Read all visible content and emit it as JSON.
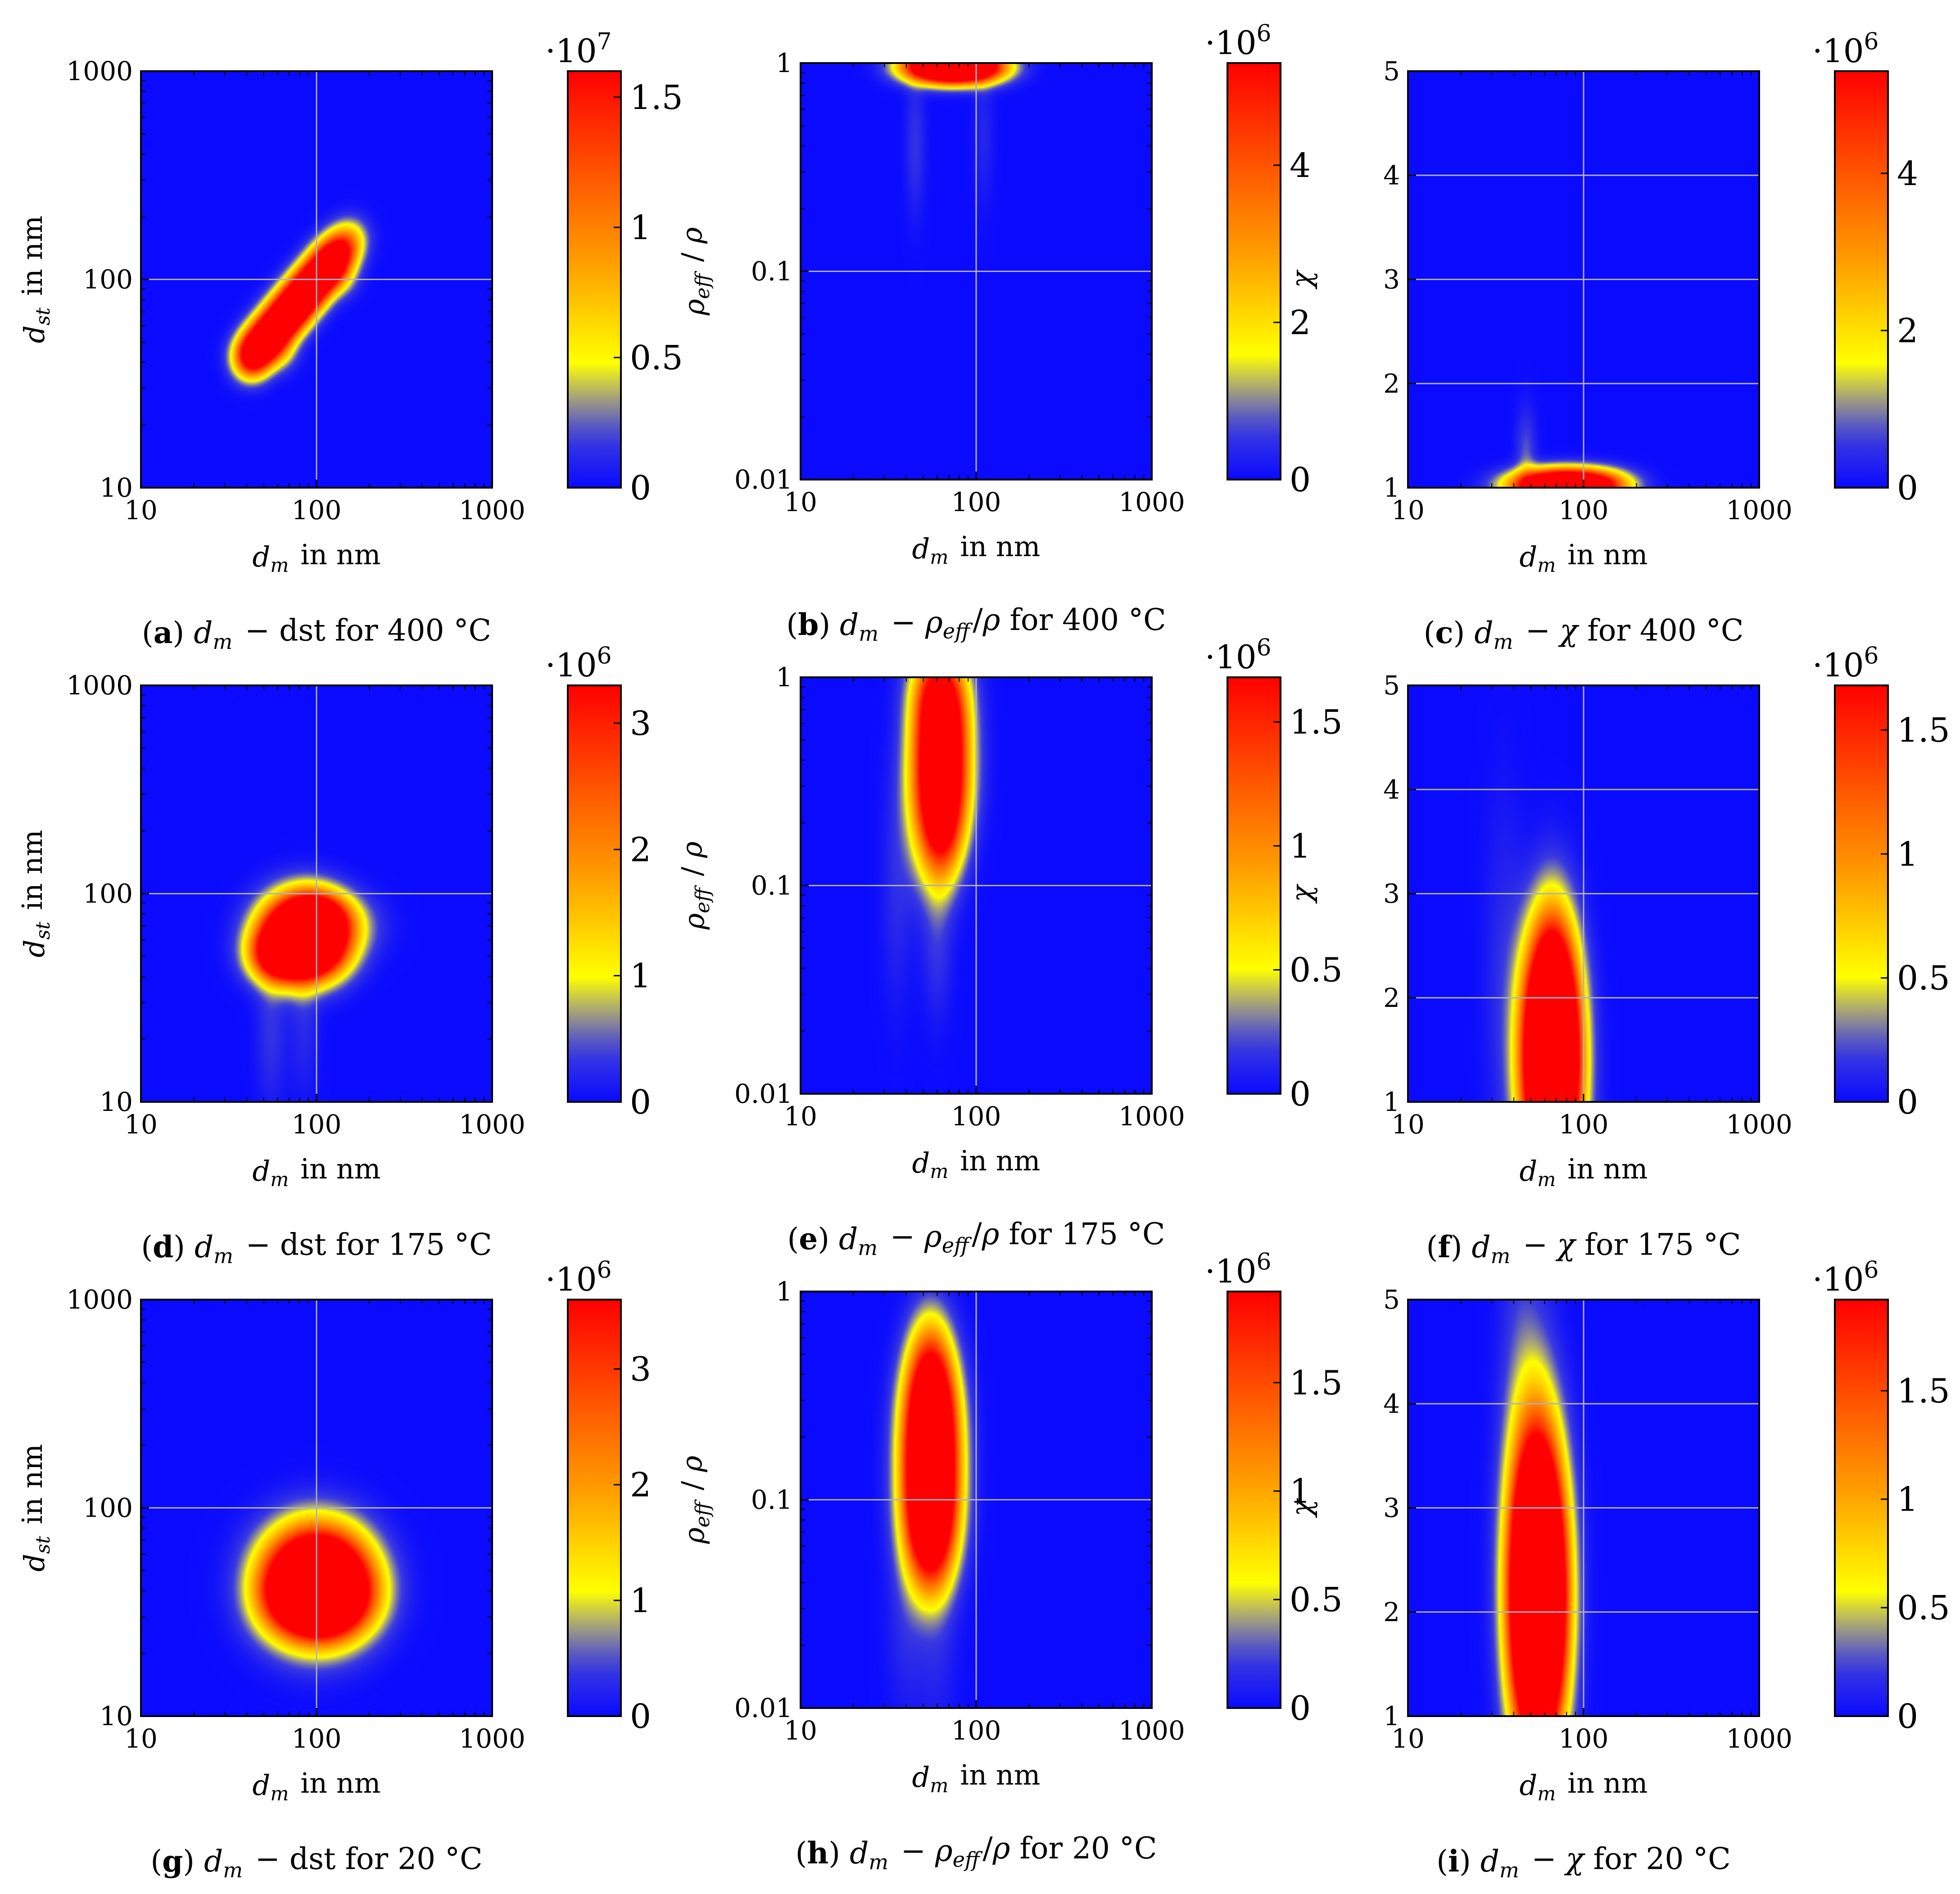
{
  "figure": {
    "colormap": {
      "name": "blue-yellow-red",
      "stops": [
        {
          "t": 0.0,
          "color": "#0a0aff"
        },
        {
          "t": 0.12,
          "color": "#3a3ae0"
        },
        {
          "t": 0.22,
          "color": "#a9a57a"
        },
        {
          "t": 0.3,
          "color": "#ffff00"
        },
        {
          "t": 0.55,
          "color": "#ff9a00"
        },
        {
          "t": 1.0,
          "color": "#ff0000"
        }
      ]
    },
    "grid_color": "#b0b0c0",
    "background_color": "#0a0aff"
  },
  "chart_data": [
    {
      "id": "a",
      "type": "heatmap",
      "caption": {
        "letter": "a",
        "text": "d_m − d_st for 400 °C"
      },
      "xlabel": "d_m in nm",
      "ylabel": "d_st in nm",
      "xscale": "log",
      "xlim": [
        10,
        1000
      ],
      "xticks": [
        10,
        100,
        1000
      ],
      "xticklabels": [
        "10",
        "100",
        "1000"
      ],
      "yscale": "log",
      "ylim": [
        10,
        1000
      ],
      "yticks": [
        10,
        100,
        1000
      ],
      "yticklabels": [
        "10",
        "100",
        "1000"
      ],
      "colorbar": {
        "exponent": "·10",
        "exp_power": "7",
        "max": 1.6,
        "ticks": [
          0,
          0.5,
          1,
          1.5
        ],
        "ticklabels": [
          "0",
          "0.5",
          "1",
          "1.5"
        ]
      },
      "blobs": [
        {
          "x": 42,
          "y": 42,
          "sx": 0.035,
          "sy": 0.035,
          "v": 0.95
        },
        {
          "x": 48,
          "y": 48,
          "sx": 0.035,
          "sy": 0.035,
          "v": 1.0
        },
        {
          "x": 55,
          "y": 55,
          "sx": 0.035,
          "sy": 0.035,
          "v": 1.0
        },
        {
          "x": 63,
          "y": 63,
          "sx": 0.035,
          "sy": 0.035,
          "v": 1.0
        },
        {
          "x": 72,
          "y": 72,
          "sx": 0.035,
          "sy": 0.035,
          "v": 1.0
        },
        {
          "x": 82,
          "y": 82,
          "sx": 0.035,
          "sy": 0.035,
          "v": 1.0
        },
        {
          "x": 94,
          "y": 94,
          "sx": 0.035,
          "sy": 0.035,
          "v": 1.0
        },
        {
          "x": 108,
          "y": 108,
          "sx": 0.035,
          "sy": 0.035,
          "v": 0.95
        },
        {
          "x": 123,
          "y": 123,
          "sx": 0.035,
          "sy": 0.035,
          "v": 0.9
        },
        {
          "x": 140,
          "y": 140,
          "sx": 0.035,
          "sy": 0.035,
          "v": 0.6
        },
        {
          "x": 160,
          "y": 160,
          "sx": 0.035,
          "sy": 0.035,
          "v": 0.25
        },
        {
          "x": 65,
          "y": 44,
          "sx": 0.03,
          "sy": 0.03,
          "v": 0.15
        },
        {
          "x": 145,
          "y": 100,
          "sx": 0.03,
          "sy": 0.03,
          "v": 0.12
        }
      ]
    },
    {
      "id": "b",
      "type": "heatmap",
      "caption": {
        "letter": "b",
        "text": "d_m − ρ_eff/ρ for 400 °C"
      },
      "xlabel": "d_m in nm",
      "ylabel": "ρ_eff / ρ",
      "xscale": "log",
      "xlim": [
        10,
        1000
      ],
      "xticks": [
        10,
        100,
        1000
      ],
      "xticklabels": [
        "10",
        "100",
        "1000"
      ],
      "yscale": "log",
      "ylim": [
        0.01,
        1
      ],
      "yticks": [
        0.01,
        0.1,
        1
      ],
      "yticklabels": [
        "0.01",
        "0.1",
        "1"
      ],
      "colorbar": {
        "exponent": "·10",
        "exp_power": "6",
        "max": 5.3,
        "ticks": [
          0,
          2,
          4
        ],
        "ticklabels": [
          "0",
          "2",
          "4"
        ]
      },
      "blobs": [
        {
          "x": 62,
          "y": 0.96,
          "sx": 0.07,
          "sy": 0.025,
          "v": 0.85
        },
        {
          "x": 75,
          "y": 0.96,
          "sx": 0.07,
          "sy": 0.025,
          "v": 0.95
        },
        {
          "x": 90,
          "y": 0.96,
          "sx": 0.07,
          "sy": 0.025,
          "v": 0.85
        },
        {
          "x": 50,
          "y": 0.96,
          "sx": 0.06,
          "sy": 0.025,
          "v": 0.35
        },
        {
          "x": 110,
          "y": 0.96,
          "sx": 0.06,
          "sy": 0.025,
          "v": 0.35
        },
        {
          "x": 45,
          "y": 0.4,
          "sx": 0.02,
          "sy": 0.12,
          "v": 0.1
        },
        {
          "x": 110,
          "y": 0.45,
          "sx": 0.02,
          "sy": 0.12,
          "v": 0.07
        }
      ]
    },
    {
      "id": "c",
      "type": "heatmap",
      "caption": {
        "letter": "c",
        "text": "d_m − χ for 400 °C"
      },
      "xlabel": "d_m in nm",
      "ylabel": "χ",
      "xscale": "log",
      "xlim": [
        10,
        1000
      ],
      "xticks": [
        10,
        100,
        1000
      ],
      "xticklabels": [
        "10",
        "100",
        "1000"
      ],
      "yscale": "linear",
      "ylim": [
        1,
        5
      ],
      "yticks": [
        1,
        2,
        3,
        4,
        5
      ],
      "yticklabels": [
        "1",
        "2",
        "3",
        "4",
        "5"
      ],
      "colorbar": {
        "exponent": "·10",
        "exp_power": "6",
        "max": 5.3,
        "ticks": [
          0,
          2,
          4
        ],
        "ticklabels": [
          "0",
          "2",
          "4"
        ]
      },
      "blobs": [
        {
          "x": 60,
          "y": 1.02,
          "sx": 0.08,
          "sy": 0.025,
          "v": 0.85
        },
        {
          "x": 78,
          "y": 1.02,
          "sx": 0.08,
          "sy": 0.025,
          "v": 0.95
        },
        {
          "x": 100,
          "y": 1.02,
          "sx": 0.08,
          "sy": 0.025,
          "v": 0.8
        },
        {
          "x": 130,
          "y": 1.02,
          "sx": 0.06,
          "sy": 0.025,
          "v": 0.3
        },
        {
          "x": 47,
          "y": 1.3,
          "sx": 0.02,
          "sy": 0.08,
          "v": 0.15
        }
      ]
    },
    {
      "id": "d",
      "type": "heatmap",
      "caption": {
        "letter": "d",
        "text": "d_m − d_st for 175 °C"
      },
      "xlabel": "d_m in nm",
      "ylabel": "d_st in nm",
      "xscale": "log",
      "xlim": [
        10,
        1000
      ],
      "xticks": [
        10,
        100,
        1000
      ],
      "xticklabels": [
        "10",
        "100",
        "1000"
      ],
      "yscale": "log",
      "ylim": [
        10,
        1000
      ],
      "yticks": [
        10,
        100,
        1000
      ],
      "yticklabels": [
        "10",
        "100",
        "1000"
      ],
      "colorbar": {
        "exponent": "·10",
        "exp_power": "6",
        "max": 3.3,
        "ticks": [
          0,
          1,
          2,
          3
        ],
        "ticklabels": [
          "0",
          "1",
          "2",
          "3"
        ]
      },
      "blobs": [
        {
          "x": 72,
          "y": 62,
          "sx": 0.07,
          "sy": 0.06,
          "v": 0.95
        },
        {
          "x": 88,
          "y": 68,
          "sx": 0.07,
          "sy": 0.06,
          "v": 1.0
        },
        {
          "x": 80,
          "y": 52,
          "sx": 0.07,
          "sy": 0.05,
          "v": 0.9
        },
        {
          "x": 102,
          "y": 77,
          "sx": 0.06,
          "sy": 0.04,
          "v": 0.8
        },
        {
          "x": 58,
          "y": 50,
          "sx": 0.05,
          "sy": 0.04,
          "v": 0.6
        },
        {
          "x": 110,
          "y": 55,
          "sx": 0.06,
          "sy": 0.05,
          "v": 0.55
        },
        {
          "x": 150,
          "y": 70,
          "sx": 0.07,
          "sy": 0.05,
          "v": 0.18
        },
        {
          "x": 55,
          "y": 22,
          "sx": 0.03,
          "sy": 0.13,
          "v": 0.1
        },
        {
          "x": 85,
          "y": 25,
          "sx": 0.03,
          "sy": 0.13,
          "v": 0.08
        }
      ]
    },
    {
      "id": "e",
      "type": "heatmap",
      "caption": {
        "letter": "e",
        "text": "d_m − ρ_eff/ρ for 175 °C"
      },
      "xlabel": "d_m in nm",
      "ylabel": "ρ_eff / ρ",
      "xscale": "log",
      "xlim": [
        10,
        1000
      ],
      "xticks": [
        10,
        100,
        1000
      ],
      "xticklabels": [
        "10",
        "100",
        "1000"
      ],
      "yscale": "log",
      "ylim": [
        0.01,
        1
      ],
      "yticks": [
        0.01,
        0.1,
        1
      ],
      "yticklabels": [
        "0.01",
        "0.1",
        "1"
      ],
      "colorbar": {
        "exponent": "·10",
        "exp_power": "6",
        "max": 1.68,
        "ticks": [
          0,
          0.5,
          1,
          1.5
        ],
        "ticklabels": [
          "0",
          "0.5",
          "1",
          "1.5"
        ]
      },
      "blobs": [
        {
          "x": 62,
          "y": 0.9,
          "sx": 0.05,
          "sy": 0.07,
          "v": 0.85
        },
        {
          "x": 63,
          "y": 0.6,
          "sx": 0.05,
          "sy": 0.07,
          "v": 0.95
        },
        {
          "x": 63,
          "y": 0.4,
          "sx": 0.05,
          "sy": 0.07,
          "v": 1.0
        },
        {
          "x": 63,
          "y": 0.27,
          "sx": 0.05,
          "sy": 0.07,
          "v": 0.95
        },
        {
          "x": 63,
          "y": 0.18,
          "sx": 0.045,
          "sy": 0.07,
          "v": 0.75
        },
        {
          "x": 62,
          "y": 0.12,
          "sx": 0.04,
          "sy": 0.08,
          "v": 0.25
        },
        {
          "x": 35,
          "y": 0.1,
          "sx": 0.03,
          "sy": 0.2,
          "v": 0.08
        },
        {
          "x": 45,
          "y": 0.2,
          "sx": 0.03,
          "sy": 0.15,
          "v": 0.08
        },
        {
          "x": 60,
          "y": 0.05,
          "sx": 0.03,
          "sy": 0.12,
          "v": 0.1
        }
      ]
    },
    {
      "id": "f",
      "type": "heatmap",
      "caption": {
        "letter": "f",
        "text": "d_m − χ for 175 °C"
      },
      "xlabel": "d_m in nm",
      "ylabel": "χ",
      "xscale": "log",
      "xlim": [
        10,
        1000
      ],
      "xticks": [
        10,
        100,
        1000
      ],
      "xticklabels": [
        "10",
        "100",
        "1000"
      ],
      "yscale": "linear",
      "ylim": [
        1,
        5
      ],
      "yticks": [
        1,
        2,
        3,
        4,
        5
      ],
      "yticklabels": [
        "1",
        "2",
        "3",
        "4",
        "5"
      ],
      "colorbar": {
        "exponent": "·10",
        "exp_power": "6",
        "max": 1.68,
        "ticks": [
          0,
          0.5,
          1,
          1.5
        ],
        "ticklabels": [
          "0",
          "0.5",
          "1",
          "1.5"
        ]
      },
      "blobs": [
        {
          "x": 66,
          "y": 1.15,
          "sx": 0.05,
          "sy": 0.18,
          "v": 1.0
        },
        {
          "x": 66,
          "y": 1.35,
          "sx": 0.05,
          "sy": 0.18,
          "v": 1.0
        },
        {
          "x": 66,
          "y": 1.55,
          "sx": 0.05,
          "sy": 0.18,
          "v": 0.9
        },
        {
          "x": 66,
          "y": 1.8,
          "sx": 0.045,
          "sy": 0.16,
          "v": 0.55
        },
        {
          "x": 66,
          "y": 2.05,
          "sx": 0.04,
          "sy": 0.15,
          "v": 0.25
        },
        {
          "x": 35,
          "y": 2.2,
          "sx": 0.04,
          "sy": 0.3,
          "v": 0.08
        },
        {
          "x": 45,
          "y": 1.6,
          "sx": 0.03,
          "sy": 0.2,
          "v": 0.07
        }
      ]
    },
    {
      "id": "g",
      "type": "heatmap",
      "caption": {
        "letter": "g",
        "text": "d_m − d_st for 20 °C"
      },
      "xlabel": "d_m in nm",
      "ylabel": "d_st in nm",
      "xscale": "log",
      "xlim": [
        10,
        1000
      ],
      "xticks": [
        10,
        100,
        1000
      ],
      "xticklabels": [
        "10",
        "100",
        "1000"
      ],
      "yscale": "log",
      "ylim": [
        10,
        1000
      ],
      "yticks": [
        10,
        100,
        1000
      ],
      "yticklabels": [
        "10",
        "100",
        "1000"
      ],
      "colorbar": {
        "exponent": "·10",
        "exp_power": "6",
        "max": 3.6,
        "ticks": [
          0,
          1,
          2,
          3
        ],
        "ticklabels": [
          "0",
          "1",
          "2",
          "3"
        ]
      },
      "blobs": [
        {
          "x": 100,
          "y": 42,
          "sx": 0.1,
          "sy": 0.09,
          "v": 1.0
        },
        {
          "x": 82,
          "y": 45,
          "sx": 0.08,
          "sy": 0.08,
          "v": 0.85
        },
        {
          "x": 122,
          "y": 45,
          "sx": 0.08,
          "sy": 0.08,
          "v": 0.85
        },
        {
          "x": 105,
          "y": 34,
          "sx": 0.08,
          "sy": 0.05,
          "v": 0.75
        },
        {
          "x": 160,
          "y": 40,
          "sx": 0.07,
          "sy": 0.06,
          "v": 0.18
        },
        {
          "x": 60,
          "y": 38,
          "sx": 0.06,
          "sy": 0.06,
          "v": 0.15
        }
      ]
    },
    {
      "id": "h",
      "type": "heatmap",
      "caption": {
        "letter": "h",
        "text": "d_m − ρ_eff/ρ for 20 °C"
      },
      "xlabel": "d_m in nm",
      "ylabel": "ρ_eff / ρ",
      "xscale": "log",
      "xlim": [
        10,
        1000
      ],
      "xticks": [
        10,
        100,
        1000
      ],
      "xticklabels": [
        "10",
        "100",
        "1000"
      ],
      "yscale": "log",
      "ylim": [
        0.01,
        1
      ],
      "yticks": [
        0.01,
        0.1,
        1
      ],
      "yticklabels": [
        "0.01",
        "0.1",
        "1"
      ],
      "colorbar": {
        "exponent": "·10",
        "exp_power": "6",
        "max": 1.92,
        "ticks": [
          0,
          0.5,
          1,
          1.5
        ],
        "ticklabels": [
          "0",
          "0.5",
          "1",
          "1.5"
        ]
      },
      "blobs": [
        {
          "x": 55,
          "y": 0.4,
          "sx": 0.045,
          "sy": 0.09,
          "v": 0.6
        },
        {
          "x": 55,
          "y": 0.27,
          "sx": 0.05,
          "sy": 0.09,
          "v": 0.9
        },
        {
          "x": 55,
          "y": 0.18,
          "sx": 0.05,
          "sy": 0.09,
          "v": 1.0
        },
        {
          "x": 55,
          "y": 0.12,
          "sx": 0.05,
          "sy": 0.09,
          "v": 1.0
        },
        {
          "x": 55,
          "y": 0.08,
          "sx": 0.05,
          "sy": 0.09,
          "v": 0.95
        },
        {
          "x": 55,
          "y": 0.055,
          "sx": 0.045,
          "sy": 0.09,
          "v": 0.55
        },
        {
          "x": 55,
          "y": 0.55,
          "sx": 0.04,
          "sy": 0.09,
          "v": 0.15
        },
        {
          "x": 40,
          "y": 0.025,
          "sx": 0.04,
          "sy": 0.15,
          "v": 0.08
        },
        {
          "x": 60,
          "y": 0.02,
          "sx": 0.04,
          "sy": 0.15,
          "v": 0.07
        }
      ]
    },
    {
      "id": "i",
      "type": "heatmap",
      "caption": {
        "letter": "i",
        "text": "d_m − χ for 20 °C"
      },
      "xlabel": "d_m in nm",
      "ylabel": "χ",
      "xscale": "log",
      "xlim": [
        10,
        1000
      ],
      "xticks": [
        10,
        100,
        1000
      ],
      "xticklabels": [
        "10",
        "100",
        "1000"
      ],
      "yscale": "linear",
      "ylim": [
        1,
        5
      ],
      "yticks": [
        1,
        2,
        3,
        4,
        5
      ],
      "yticklabels": [
        "1",
        "2",
        "3",
        "4",
        "5"
      ],
      "colorbar": {
        "exponent": "·10",
        "exp_power": "6",
        "max": 1.92,
        "ticks": [
          0,
          0.5,
          1,
          1.5
        ],
        "ticklabels": [
          "0",
          "0.5",
          "1",
          "1.5"
        ]
      },
      "blobs": [
        {
          "x": 55,
          "y": 1.55,
          "sx": 0.045,
          "sy": 0.18,
          "v": 0.7
        },
        {
          "x": 55,
          "y": 1.85,
          "sx": 0.05,
          "sy": 0.2,
          "v": 1.0
        },
        {
          "x": 55,
          "y": 2.2,
          "sx": 0.05,
          "sy": 0.2,
          "v": 1.0
        },
        {
          "x": 55,
          "y": 2.55,
          "sx": 0.05,
          "sy": 0.2,
          "v": 0.85
        },
        {
          "x": 55,
          "y": 2.9,
          "sx": 0.045,
          "sy": 0.2,
          "v": 0.5
        },
        {
          "x": 50,
          "y": 3.4,
          "sx": 0.05,
          "sy": 0.3,
          "v": 0.15
        },
        {
          "x": 42,
          "y": 4.3,
          "sx": 0.04,
          "sy": 0.4,
          "v": 0.06
        }
      ]
    }
  ]
}
